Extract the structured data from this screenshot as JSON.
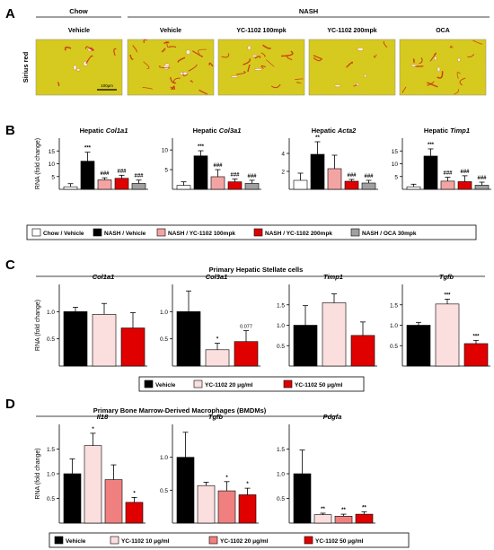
{
  "panels": {
    "A": {
      "letter": "A",
      "group_labels": [
        {
          "text": "Chow",
          "x1": 40,
          "x2": 135
        },
        {
          "text": "NASH",
          "x1": 142,
          "x2": 545
        }
      ],
      "row_label": "Sirius red",
      "images": [
        {
          "label": "Vehicle",
          "fibrosis": "low"
        },
        {
          "label": "Vehicle",
          "fibrosis": "high"
        },
        {
          "label": "YC-1102 100mpk",
          "fibrosis": "mid"
        },
        {
          "label": "YC-1102 200mpk",
          "fibrosis": "low"
        },
        {
          "label": "OCA",
          "fibrosis": "mid"
        }
      ],
      "scale_bar": "100μm"
    },
    "B": {
      "letter": "B"
    },
    "C": {
      "letter": "C",
      "subtitle": "Primary Hepatic Stellate cells"
    },
    "D": {
      "letter": "D",
      "subtitle": "Primary Bone Marrow-Derived Macrophages (BMDMs)"
    }
  },
  "ylabel": "RNA (fold change)",
  "colors": {
    "white": "#ffffff",
    "black": "#000000",
    "lightred": "#f4a3a3",
    "red": "#e00000",
    "gray": "#a0a0a0",
    "pink": "#fbdede",
    "salmon": "#f08080"
  },
  "legends": {
    "B": [
      {
        "label": "Chow / Vehicle",
        "color": "#ffffff"
      },
      {
        "label": "NASH / Vehicle",
        "color": "#000000"
      },
      {
        "label": "NASH / YC-1102 100mpk",
        "color": "#f4a3a3"
      },
      {
        "label": "NASH / YC-1102 200mpk",
        "color": "#e00000"
      },
      {
        "label": "NASH / OCA 30mpk",
        "color": "#a0a0a0"
      }
    ],
    "C": [
      {
        "label": "Vehicle",
        "color": "#000000"
      },
      {
        "label": "YC-1102  20 μg/ml",
        "color": "#fbdede"
      },
      {
        "label": "YC-1102 50 μg/ml",
        "color": "#e00000"
      }
    ],
    "D": [
      {
        "label": "Vehicle",
        "color": "#000000"
      },
      {
        "label": "YC-1102  10 μg/ml",
        "color": "#fbdede"
      },
      {
        "label": "YC-1102 20 μg/ml",
        "color": "#f08080"
      },
      {
        "label": "YC-1102 50 μg/ml",
        "color": "#e00000"
      }
    ]
  },
  "chart_data": [
    {
      "panel": "B",
      "type": "bar",
      "title_prefix": "Hepatic ",
      "title_gene": "Col1a1",
      "ylim": [
        0,
        20
      ],
      "yticks": [
        5,
        10,
        15
      ],
      "series": [
        {
          "name": "Chow / Vehicle",
          "value": 1.0,
          "err": 1.2,
          "color": "#ffffff",
          "sig": ""
        },
        {
          "name": "NASH / Vehicle",
          "value": 11.0,
          "err": 3.5,
          "color": "#000000",
          "sig": "***"
        },
        {
          "name": "NASH / YC-1102 100mpk",
          "value": 3.7,
          "err": 0.8,
          "color": "#f4a3a3",
          "sig": "###"
        },
        {
          "name": "NASH / YC-1102 200mpk",
          "value": 4.3,
          "err": 1.2,
          "color": "#e00000",
          "sig": "###"
        },
        {
          "name": "NASH / OCA 30mpk",
          "value": 2.3,
          "err": 1.3,
          "color": "#a0a0a0",
          "sig": "###"
        }
      ]
    },
    {
      "panel": "B",
      "type": "bar",
      "title_prefix": "Hepatic ",
      "title_gene": "Col3a1",
      "ylim": [
        0,
        13
      ],
      "yticks": [
        5,
        10
      ],
      "series": [
        {
          "name": "Chow / Vehicle",
          "value": 1.0,
          "err": 0.9,
          "color": "#ffffff",
          "sig": ""
        },
        {
          "name": "NASH / Vehicle",
          "value": 8.5,
          "err": 1.3,
          "color": "#000000",
          "sig": "***"
        },
        {
          "name": "NASH / YC-1102 100mpk",
          "value": 3.2,
          "err": 1.8,
          "color": "#f4a3a3",
          "sig": "###"
        },
        {
          "name": "NASH / YC-1102 200mpk",
          "value": 1.9,
          "err": 0.7,
          "color": "#e00000",
          "sig": "###"
        },
        {
          "name": "NASH / OCA 30mpk",
          "value": 1.5,
          "err": 0.8,
          "color": "#a0a0a0",
          "sig": "###"
        }
      ]
    },
    {
      "panel": "B",
      "type": "bar",
      "title_prefix": "Hepatic ",
      "title_gene": "Acta2",
      "ylim": [
        0,
        5.7
      ],
      "yticks": [
        2,
        4
      ],
      "series": [
        {
          "name": "Chow / Vehicle",
          "value": 1.0,
          "err": 0.8,
          "color": "#ffffff",
          "sig": ""
        },
        {
          "name": "NASH / Vehicle",
          "value": 3.9,
          "err": 1.4,
          "color": "#000000",
          "sig": "**"
        },
        {
          "name": "NASH / YC-1102 100mpk",
          "value": 2.3,
          "err": 1.5,
          "color": "#f4a3a3",
          "sig": ""
        },
        {
          "name": "NASH / YC-1102 200mpk",
          "value": 0.9,
          "err": 0.2,
          "color": "#e00000",
          "sig": "###"
        },
        {
          "name": "NASH / OCA 30mpk",
          "value": 0.7,
          "err": 0.3,
          "color": "#a0a0a0",
          "sig": "###"
        }
      ]
    },
    {
      "panel": "B",
      "type": "bar",
      "title_prefix": "Hepatic ",
      "title_gene": "Timp1",
      "ylim": [
        0,
        20
      ],
      "yticks": [
        5,
        10,
        15
      ],
      "series": [
        {
          "name": "Chow / Vehicle",
          "value": 1.0,
          "err": 1.0,
          "color": "#ffffff",
          "sig": ""
        },
        {
          "name": "NASH / Vehicle",
          "value": 13.0,
          "err": 2.8,
          "color": "#000000",
          "sig": "***"
        },
        {
          "name": "NASH / YC-1102 100mpk",
          "value": 3.2,
          "err": 1.5,
          "color": "#f4a3a3",
          "sig": "###"
        },
        {
          "name": "NASH / YC-1102 200mpk",
          "value": 3.0,
          "err": 2.3,
          "color": "#e00000",
          "sig": "###"
        },
        {
          "name": "NASH / OCA 30mpk",
          "value": 1.6,
          "err": 1.2,
          "color": "#a0a0a0",
          "sig": "###"
        }
      ]
    },
    {
      "panel": "C",
      "type": "bar",
      "title_prefix": "",
      "title_gene": "Col1a1",
      "ylim": [
        0,
        1.5
      ],
      "yticks": [
        0.5,
        1.0
      ],
      "series": [
        {
          "name": "Vehicle",
          "value": 1.0,
          "err": 0.08,
          "color": "#000000",
          "sig": ""
        },
        {
          "name": "YC-1102  20 μg/ml",
          "value": 0.95,
          "err": 0.2,
          "color": "#fbdede",
          "sig": ""
        },
        {
          "name": "YC-1102 50 μg/ml",
          "value": 0.7,
          "err": 0.28,
          "color": "#e00000",
          "sig": ""
        }
      ]
    },
    {
      "panel": "C",
      "type": "bar",
      "title_prefix": "",
      "title_gene": "Col3a1",
      "ylim": [
        0,
        1.5
      ],
      "yticks": [
        0.5,
        1.0
      ],
      "series": [
        {
          "name": "Vehicle",
          "value": 1.0,
          "err": 0.38,
          "color": "#000000",
          "sig": ""
        },
        {
          "name": "YC-1102  20 μg/ml",
          "value": 0.3,
          "err": 0.12,
          "color": "#fbdede",
          "sig": "*"
        },
        {
          "name": "YC-1102 50 μg/ml",
          "value": 0.45,
          "err": 0.2,
          "color": "#e00000",
          "sig": "0.077"
        }
      ]
    },
    {
      "panel": "C",
      "type": "bar",
      "title_prefix": "",
      "title_gene": "Timp1",
      "ylim": [
        0,
        2.0
      ],
      "yticks": [
        0.5,
        1.0,
        1.5
      ],
      "series": [
        {
          "name": "Vehicle",
          "value": 1.0,
          "err": 0.48,
          "color": "#000000",
          "sig": ""
        },
        {
          "name": "YC-1102  20 μg/ml",
          "value": 1.55,
          "err": 0.22,
          "color": "#fbdede",
          "sig": ""
        },
        {
          "name": "YC-1102 50 μg/ml",
          "value": 0.75,
          "err": 0.33,
          "color": "#e00000",
          "sig": ""
        }
      ]
    },
    {
      "panel": "C",
      "type": "bar",
      "title_prefix": "",
      "title_gene": "Tgfb",
      "ylim": [
        0,
        2.0
      ],
      "yticks": [
        0.5,
        1.0,
        1.5
      ],
      "series": [
        {
          "name": "Vehicle",
          "value": 1.0,
          "err": 0.07,
          "color": "#000000",
          "sig": ""
        },
        {
          "name": "YC-1102  20 μg/ml",
          "value": 1.52,
          "err": 0.12,
          "color": "#fbdede",
          "sig": "***"
        },
        {
          "name": "YC-1102 50 μg/ml",
          "value": 0.55,
          "err": 0.08,
          "color": "#e00000",
          "sig": "***"
        }
      ]
    },
    {
      "panel": "D",
      "type": "bar",
      "title_prefix": "",
      "title_gene": "Il18",
      "ylim": [
        0,
        2.0
      ],
      "yticks": [
        0.5,
        1.0,
        1.5
      ],
      "series": [
        {
          "name": "Vehicle",
          "value": 1.0,
          "err": 0.3,
          "color": "#000000",
          "sig": ""
        },
        {
          "name": "YC-1102  10 μg/ml",
          "value": 1.57,
          "err": 0.25,
          "color": "#fbdede",
          "sig": "*"
        },
        {
          "name": "YC-1102 20 μg/ml",
          "value": 0.88,
          "err": 0.3,
          "color": "#f08080",
          "sig": ""
        },
        {
          "name": "YC-1102 50 μg/ml",
          "value": 0.42,
          "err": 0.1,
          "color": "#e00000",
          "sig": "*"
        }
      ]
    },
    {
      "panel": "D",
      "type": "bar",
      "title_prefix": "",
      "title_gene": "Tgfb",
      "ylim": [
        0,
        1.5
      ],
      "yticks": [
        0.5,
        1.0
      ],
      "series": [
        {
          "name": "Vehicle",
          "value": 1.0,
          "err": 0.38,
          "color": "#000000",
          "sig": ""
        },
        {
          "name": "YC-1102  10 μg/ml",
          "value": 0.57,
          "err": 0.05,
          "color": "#fbdede",
          "sig": ""
        },
        {
          "name": "YC-1102 20 μg/ml",
          "value": 0.49,
          "err": 0.14,
          "color": "#f08080",
          "sig": "*"
        },
        {
          "name": "YC-1102 50 μg/ml",
          "value": 0.43,
          "err": 0.1,
          "color": "#e00000",
          "sig": "*"
        }
      ]
    },
    {
      "panel": "D",
      "type": "bar",
      "title_prefix": "",
      "title_gene": "Pdgfa",
      "ylim": [
        0,
        2.0
      ],
      "yticks": [
        0.5,
        1.0,
        1.5
      ],
      "series": [
        {
          "name": "Vehicle",
          "value": 1.0,
          "err": 0.48,
          "color": "#000000",
          "sig": ""
        },
        {
          "name": "YC-1102  10 μg/ml",
          "value": 0.17,
          "err": 0.03,
          "color": "#fbdede",
          "sig": "**"
        },
        {
          "name": "YC-1102 20 μg/ml",
          "value": 0.14,
          "err": 0.04,
          "color": "#f08080",
          "sig": "**"
        },
        {
          "name": "YC-1102 50 μg/ml",
          "value": 0.18,
          "err": 0.05,
          "color": "#e00000",
          "sig": "**"
        }
      ]
    }
  ]
}
